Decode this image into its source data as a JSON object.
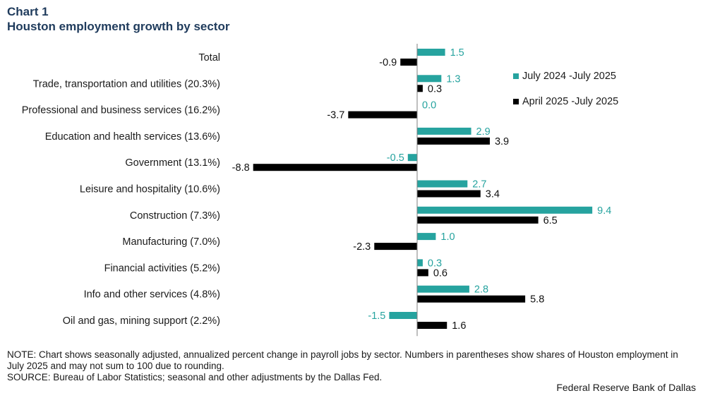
{
  "header": {
    "chart_number": "Chart 1",
    "title": "Houston employment growth by sector"
  },
  "chart_data": {
    "type": "bar",
    "orientation": "horizontal",
    "categories": [
      "Total",
      "Trade, transportation and utilities (20.3%)",
      "Professional and business services (16.2%)",
      "Education and health services (13.6%)",
      "Government (13.1%)",
      "Leisure and hospitality (10.6%)",
      "Construction (7.3%)",
      "Manufacturing (7.0%)",
      "Financial activities (5.2%)",
      "Info and other services (4.8%)",
      "Oil and gas, mining support (2.2%)"
    ],
    "series": [
      {
        "name": "July 2024 -July 2025",
        "color": "#26a39f",
        "values": [
          1.5,
          1.3,
          0.0,
          2.9,
          -0.5,
          2.7,
          9.4,
          1.0,
          0.3,
          2.8,
          -1.5
        ],
        "labels": [
          "1.5",
          "1.3",
          "0.0",
          "2.9",
          "-0.5",
          "2.7",
          "9.4",
          "1.0",
          "0.3",
          "2.8",
          "-1.5"
        ]
      },
      {
        "name": "April 2025 -July 2025",
        "color": "#000000",
        "values": [
          -0.9,
          0.3,
          -3.7,
          3.9,
          -8.8,
          3.4,
          6.5,
          -2.3,
          0.6,
          5.8,
          1.6
        ],
        "labels": [
          "-0.9",
          "0.3",
          "-3.7",
          "3.9",
          "-8.8",
          "3.4",
          "6.5",
          "-2.3",
          "0.6",
          "5.8",
          "1.6"
        ]
      }
    ],
    "xlim": [
      -9,
      10
    ],
    "grid": false,
    "legend_position": "right"
  },
  "footer": {
    "note": "NOTE: Chart shows seasonally adjusted, annualized percent change in payroll jobs by sector. Numbers in parentheses show shares of Houston employment in July 2025 and may not sum to 100 due to rounding.",
    "source": "SOURCE: Bureau of Labor Statistics; seasonal and other adjustments by the Dallas Fed.",
    "credit": "Federal Reserve Bank of Dallas"
  }
}
